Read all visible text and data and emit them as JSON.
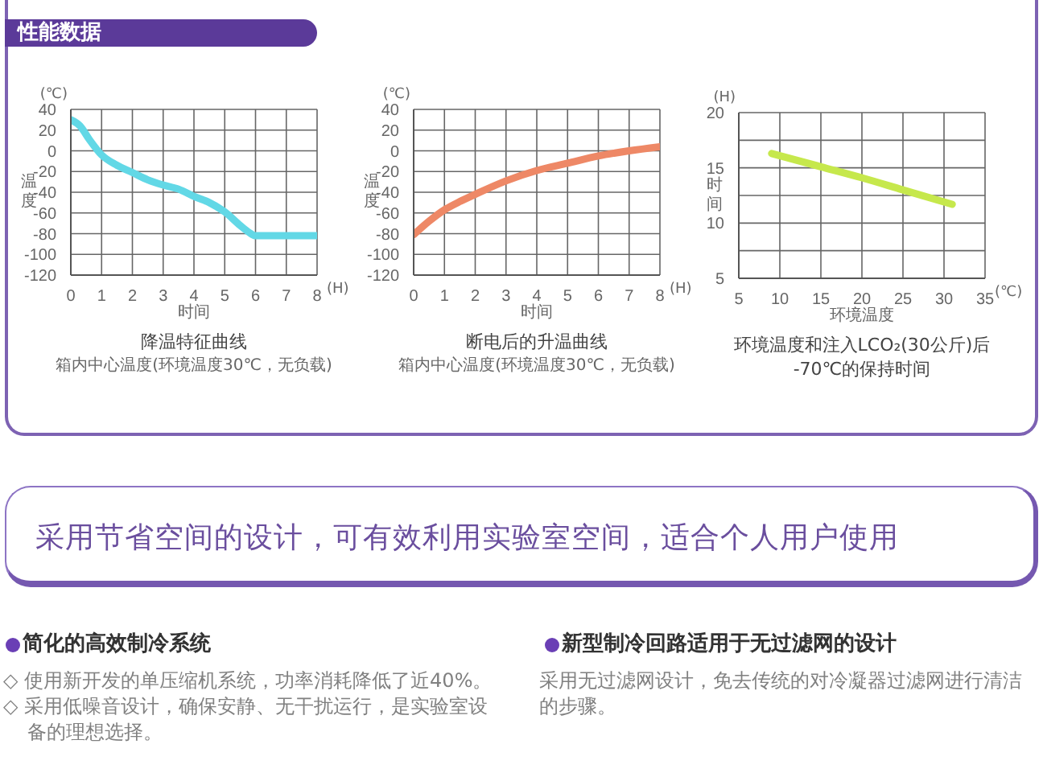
{
  "chart_data": [
    {
      "type": "other",
      "title": "性能数据"
    },
    {
      "type": "line",
      "title": "降温特征曲线",
      "subtitle": "箱内中心温度(环境温度30℃，无负载)",
      "xlabel": "时间",
      "ylabel": "温度",
      "annotations": [
        "(℃)",
        "(H)"
      ],
      "x": [
        0,
        0.3,
        0.6,
        1,
        1.5,
        2,
        2.5,
        3,
        3.5,
        4,
        4.5,
        5,
        5.5,
        5.8,
        6,
        7,
        8
      ],
      "series": [
        {
          "color": "#62d8e6",
          "values": [
            30,
            24,
            11,
            -4,
            -14,
            -21,
            -28,
            -33,
            -37,
            -44,
            -50,
            -59,
            -72,
            -79,
            -82,
            -82,
            -82
          ]
        }
      ],
      "xlim": [
        0,
        8
      ],
      "xticks": [
        0,
        1,
        2,
        3,
        4,
        5,
        6,
        7,
        8
      ],
      "ylim": [
        -120,
        40
      ],
      "yticks": [
        -120,
        -100,
        -80,
        -60,
        -40,
        -20,
        0,
        20,
        40
      ],
      "grid": true
    },
    {
      "type": "line",
      "title": "断电后的升温曲线",
      "subtitle": "箱内中心温度(环境温度30℃，无负载)",
      "xlabel": "时间",
      "ylabel": "温度",
      "annotations": [
        "(℃)",
        "(H)"
      ],
      "x": [
        0,
        0.5,
        1,
        1.5,
        2,
        3,
        4,
        5,
        6,
        7,
        8
      ],
      "series": [
        {
          "color": "#ee8866",
          "values": [
            -81,
            -68,
            -57,
            -49,
            -42,
            -29,
            -19,
            -12,
            -5,
            0,
            4
          ]
        }
      ],
      "xlim": [
        0,
        8
      ],
      "xticks": [
        0,
        1,
        2,
        3,
        4,
        5,
        6,
        7,
        8
      ],
      "ylim": [
        -120,
        40
      ],
      "yticks": [
        -120,
        -100,
        -80,
        -60,
        -40,
        -20,
        0,
        20,
        40
      ],
      "grid": true
    },
    {
      "type": "line",
      "title": "环境温度和注入LCO₂(30公斤)后\n-70℃的保持时间",
      "xlabel": "环境温度",
      "ylabel": "时间",
      "annotations": [
        "(H)",
        "(℃)"
      ],
      "x": [
        9,
        15,
        20,
        25,
        31
      ],
      "series": [
        {
          "color": "#c6e84c",
          "values": [
            16.3,
            15.1,
            14.1,
            13,
            11.7
          ]
        }
      ],
      "xlim": [
        5,
        35
      ],
      "xticks": [
        5,
        10,
        15,
        20,
        25,
        30,
        35
      ],
      "ylim": [
        5,
        20
      ],
      "yticks": [
        5,
        {
          "value": 7.5,
          "label": null
        },
        10,
        {
          "value": 12.5,
          "label": null
        },
        15,
        {
          "value": 17.5,
          "label": null
        },
        20
      ],
      "grid": true
    },
    {
      "type": "other",
      "title": "采用节省空间的设计，可有效利用实验室空间，适合个人用户使用"
    },
    {
      "type": "other",
      "title": "简化的高效制冷系统",
      "annotations": [
        "◇ 使用新开发的单压缩机系统，功率消耗降低了近40%。",
        "◇ 采用低噪音设计，确保安静、无干扰运行，是实验室设备的理想选择。"
      ]
    },
    {
      "type": "other",
      "title": "新型制冷回路适用于无过滤网的设计",
      "annotations": [
        "采用无过滤网设计，免去传统的对冷凝器过滤网进行清洁的步骤。"
      ]
    }
  ]
}
